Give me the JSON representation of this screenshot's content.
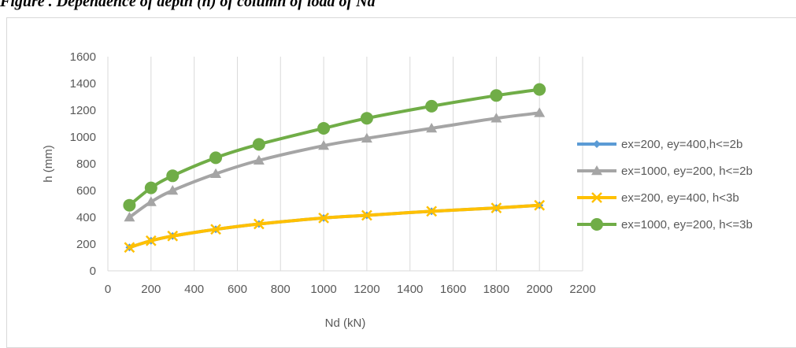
{
  "caption": "Figure . Dependence of depth (h) of column of load of Nd",
  "chart_data": {
    "type": "line",
    "xlabel": "Nd (kN)",
    "ylabel": "h (mm)",
    "xlim": [
      0,
      2200
    ],
    "ylim": [
      0,
      1600
    ],
    "x_ticks": [
      "0",
      "200",
      "400",
      "600",
      "800",
      "1000",
      "1200",
      "1400",
      "1600",
      "1800",
      "2000",
      "2200"
    ],
    "y_ticks": [
      "0",
      "200",
      "400",
      "600",
      "800",
      "1000",
      "1200",
      "1400",
      "1600"
    ],
    "grid": "vertical",
    "legend_position": "right",
    "x": [
      100,
      200,
      300,
      500,
      700,
      1000,
      1200,
      1500,
      1800,
      2000
    ],
    "series": [
      {
        "name": "ex=200, ey=400,h<=2b",
        "color": "#5b9bd5",
        "marker": "diamond",
        "values": [
          175,
          225,
          260,
          310,
          350,
          395,
          415,
          445,
          470,
          490
        ]
      },
      {
        "name": "ex=1000, ey=200, h<=2b",
        "color": "#a5a5a5",
        "marker": "triangle",
        "values": [
          400,
          515,
          600,
          725,
          825,
          935,
          990,
          1065,
          1140,
          1180
        ]
      },
      {
        "name": "ex=200, ey=400, h<3b",
        "color": "#ffc000",
        "marker": "x",
        "values": [
          175,
          225,
          260,
          310,
          350,
          395,
          415,
          445,
          470,
          490
        ]
      },
      {
        "name": "ex=1000, ey=200, h<=3b",
        "color": "#70ad47",
        "marker": "circle",
        "values": [
          490,
          620,
          710,
          845,
          945,
          1065,
          1140,
          1230,
          1310,
          1355
        ]
      }
    ]
  }
}
